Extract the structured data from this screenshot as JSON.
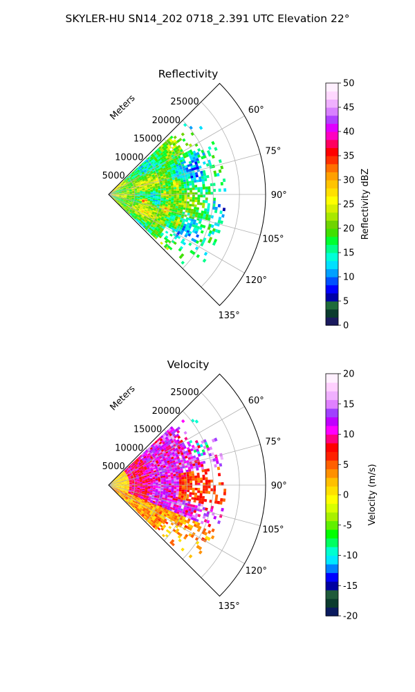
{
  "figure": {
    "suptitle": "SKYLER-HU  SN14_202  0718_2.391 UTC Elevation 22°"
  },
  "colors": {
    "reflectivity_scale": [
      "#1a1a5e",
      "#0b3b2e",
      "#1f6b3a",
      "#0000a8",
      "#0000ff",
      "#0050ff",
      "#00a0ff",
      "#00e0ff",
      "#00ffd8",
      "#00ff8a",
      "#00ff30",
      "#40e000",
      "#6fd400",
      "#a8e800",
      "#d8f000",
      "#ffff00",
      "#ffe000",
      "#ffc400",
      "#ffa000",
      "#ff7000",
      "#ff3000",
      "#ff0000",
      "#ff0060",
      "#ff00c0",
      "#e000ff",
      "#b040ff",
      "#d880ff",
      "#f0b0ff",
      "#ffd8ff",
      "#fff0ff"
    ],
    "velocity_scale": [
      "#0a1a5e",
      "#0b3b2e",
      "#1f5a3a",
      "#0000a0",
      "#0000ff",
      "#0080ff",
      "#00e8ff",
      "#00ffd0",
      "#00ff60",
      "#00ff00",
      "#60f000",
      "#a8f000",
      "#d8ff00",
      "#ffff00",
      "#ffe000",
      "#ffc000",
      "#ff9000",
      "#ff6000",
      "#ff2000",
      "#ff0000",
      "#ff0080",
      "#ff00ff",
      "#c000ff",
      "#a040ff",
      "#e080ff",
      "#f0b0ff",
      "#ffd0ff",
      "#fff0ff"
    ]
  },
  "chart_data": [
    {
      "type": "heatmap",
      "title": "Reflectivity",
      "radial_axis_label": "Meters",
      "radial_ticks": [
        5000,
        10000,
        15000,
        20000,
        25000
      ],
      "radial_tick_labels": [
        "5000",
        "10000",
        "15000",
        "20000",
        "25000"
      ],
      "radial_range": [
        0,
        30000
      ],
      "angular_range_deg": [
        45,
        135
      ],
      "angular_ticks": [
        60,
        75,
        90,
        105,
        120,
        135
      ],
      "angular_tick_labels": [
        "60°",
        "75°",
        "90°",
        "105°",
        "120°",
        "135°"
      ],
      "grid": true,
      "colorbar": {
        "label": "Reflectivity dBZ",
        "ticks": [
          0,
          5,
          10,
          15,
          20,
          25,
          30,
          35,
          40,
          45,
          50
        ],
        "range": [
          0,
          50
        ]
      },
      "field_description": "reflectivity mostly 15–30 dBZ within ~15 km, cores up to ~40 dBZ near 100° azimuth"
    },
    {
      "type": "heatmap",
      "title": "Velocity",
      "radial_axis_label": "Meters",
      "radial_ticks": [
        5000,
        10000,
        15000,
        20000,
        25000
      ],
      "radial_tick_labels": [
        "5000",
        "10000",
        "15000",
        "20000",
        "25000"
      ],
      "radial_range": [
        0,
        30000
      ],
      "angular_range_deg": [
        45,
        135
      ],
      "angular_ticks": [
        60,
        75,
        90,
        105,
        120,
        135
      ],
      "angular_tick_labels": [
        "60°",
        "75°",
        "90°",
        "105°",
        "120°",
        "135°"
      ],
      "grid": true,
      "colorbar": {
        "label": "Velocity (m/s)",
        "ticks": [
          -20,
          -15,
          -10,
          -5,
          0,
          5,
          10,
          15,
          20
        ],
        "range": [
          -20,
          20
        ]
      },
      "field_description": "velocity mostly +5 to +15 m/s, near 0 close to radar, a few -10 m/s gates near 70° at far range"
    }
  ]
}
